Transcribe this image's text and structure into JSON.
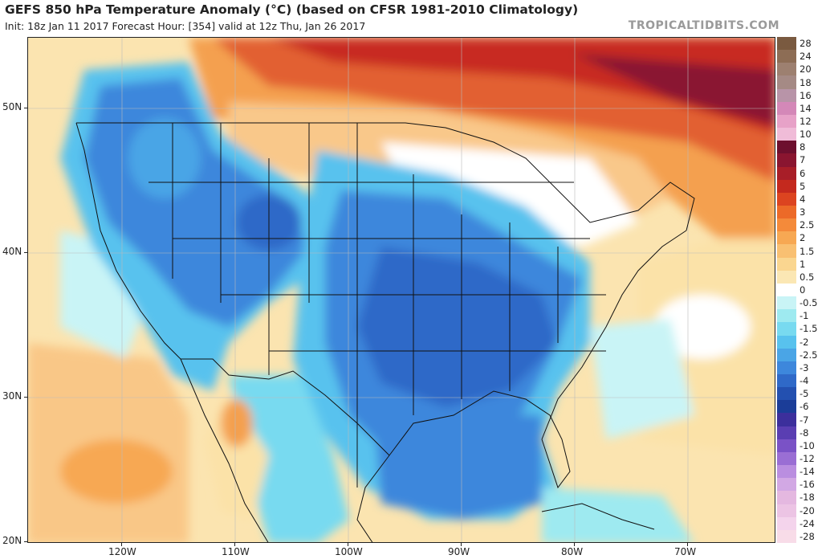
{
  "title": "GEFS 850 hPa Temperature Anomaly (°C) (based on CFSR 1981-2010 Climatology)",
  "subtitle": "Init: 18z Jan 11 2017   Forecast Hour: [354]   valid at 12z Thu, Jan 26 2017",
  "brand": "TROPICALTIDBITS.COM",
  "map": {
    "lon_range": [
      -128,
      -62
    ],
    "lat_range": [
      20,
      55
    ],
    "lat_labels": [
      "50N",
      "40N",
      "30N",
      "20N"
    ],
    "lon_labels": [
      "120W",
      "110W",
      "100W",
      "90W",
      "80W",
      "70W"
    ]
  },
  "colorbar": {
    "levels": [
      "28",
      "24",
      "20",
      "18",
      "16",
      "14",
      "12",
      "10",
      "8",
      "7",
      "6",
      "5",
      "4",
      "3",
      "2.5",
      "2",
      "1.5",
      "1",
      "0.5",
      "0",
      "-0.5",
      "-1",
      "-1.5",
      "-2",
      "-2.5",
      "-3",
      "-4",
      "-5",
      "-6",
      "-7",
      "-8",
      "-10",
      "-12",
      "-14",
      "-16",
      "-18",
      "-20",
      "-24",
      "-28"
    ],
    "colors": [
      "#7a5a40",
      "#8d6d55",
      "#9d8070",
      "#a58a85",
      "#b894a8",
      "#d488b8",
      "#e7a2c8",
      "#f0bcd8",
      "#6d0f2e",
      "#8a1530",
      "#a81e28",
      "#c4291e",
      "#dc4420",
      "#ec6a28",
      "#f48a3a",
      "#f7a853",
      "#f9c072",
      "#fad690",
      "#fbe7b4",
      "#ffffff",
      "#c9f4f6",
      "#9eeaf0",
      "#78daf0",
      "#58c2ee",
      "#4aa5e6",
      "#3d87dc",
      "#2f69c8",
      "#2350b0",
      "#1b3d98",
      "#3c2f9c",
      "#5a3eb2",
      "#7a52c6",
      "#9a6ed4",
      "#ba8ee0",
      "#d2a8e4",
      "#e4b8e0",
      "#ecc4e4",
      "#f4d4ec",
      "#f8dce8"
    ]
  }
}
